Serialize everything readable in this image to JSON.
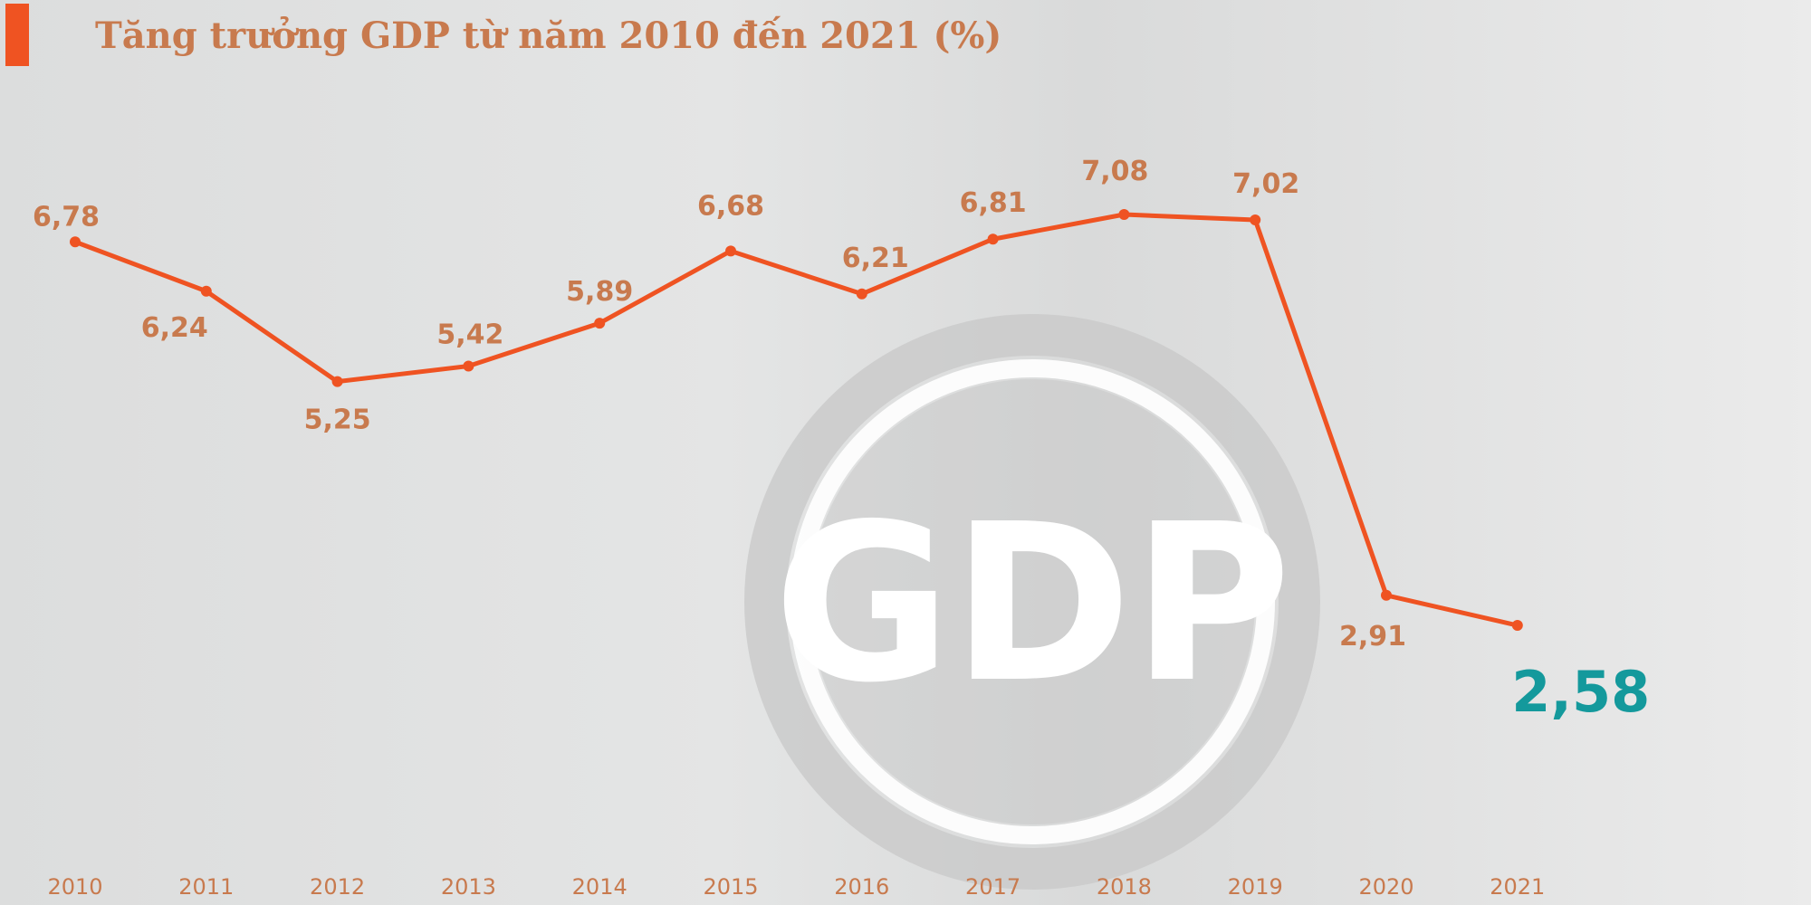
{
  "chart_data": {
    "type": "line",
    "title": "Tăng trưởng GDP từ năm 2010 đến 2021 (%)",
    "categories": [
      "2010",
      "2011",
      "2012",
      "2013",
      "2014",
      "2015",
      "2016",
      "2017",
      "2018",
      "2019",
      "2020",
      "2021"
    ],
    "values": [
      6.78,
      6.24,
      5.25,
      5.42,
      5.89,
      6.68,
      6.21,
      6.81,
      7.08,
      7.02,
      2.91,
      2.58
    ],
    "data_labels": [
      "6,78",
      "6,24",
      "5,25",
      "5,42",
      "5,89",
      "6,68",
      "6,21",
      "6,81",
      "7,08",
      "7,02",
      "2,91",
      "2,58"
    ],
    "xlabel": "",
    "ylabel": "",
    "grid": false,
    "line_color": "#ef5322",
    "label_color": "#c87a4e",
    "highlight_color": "#14999c"
  },
  "background_text": "GDP"
}
